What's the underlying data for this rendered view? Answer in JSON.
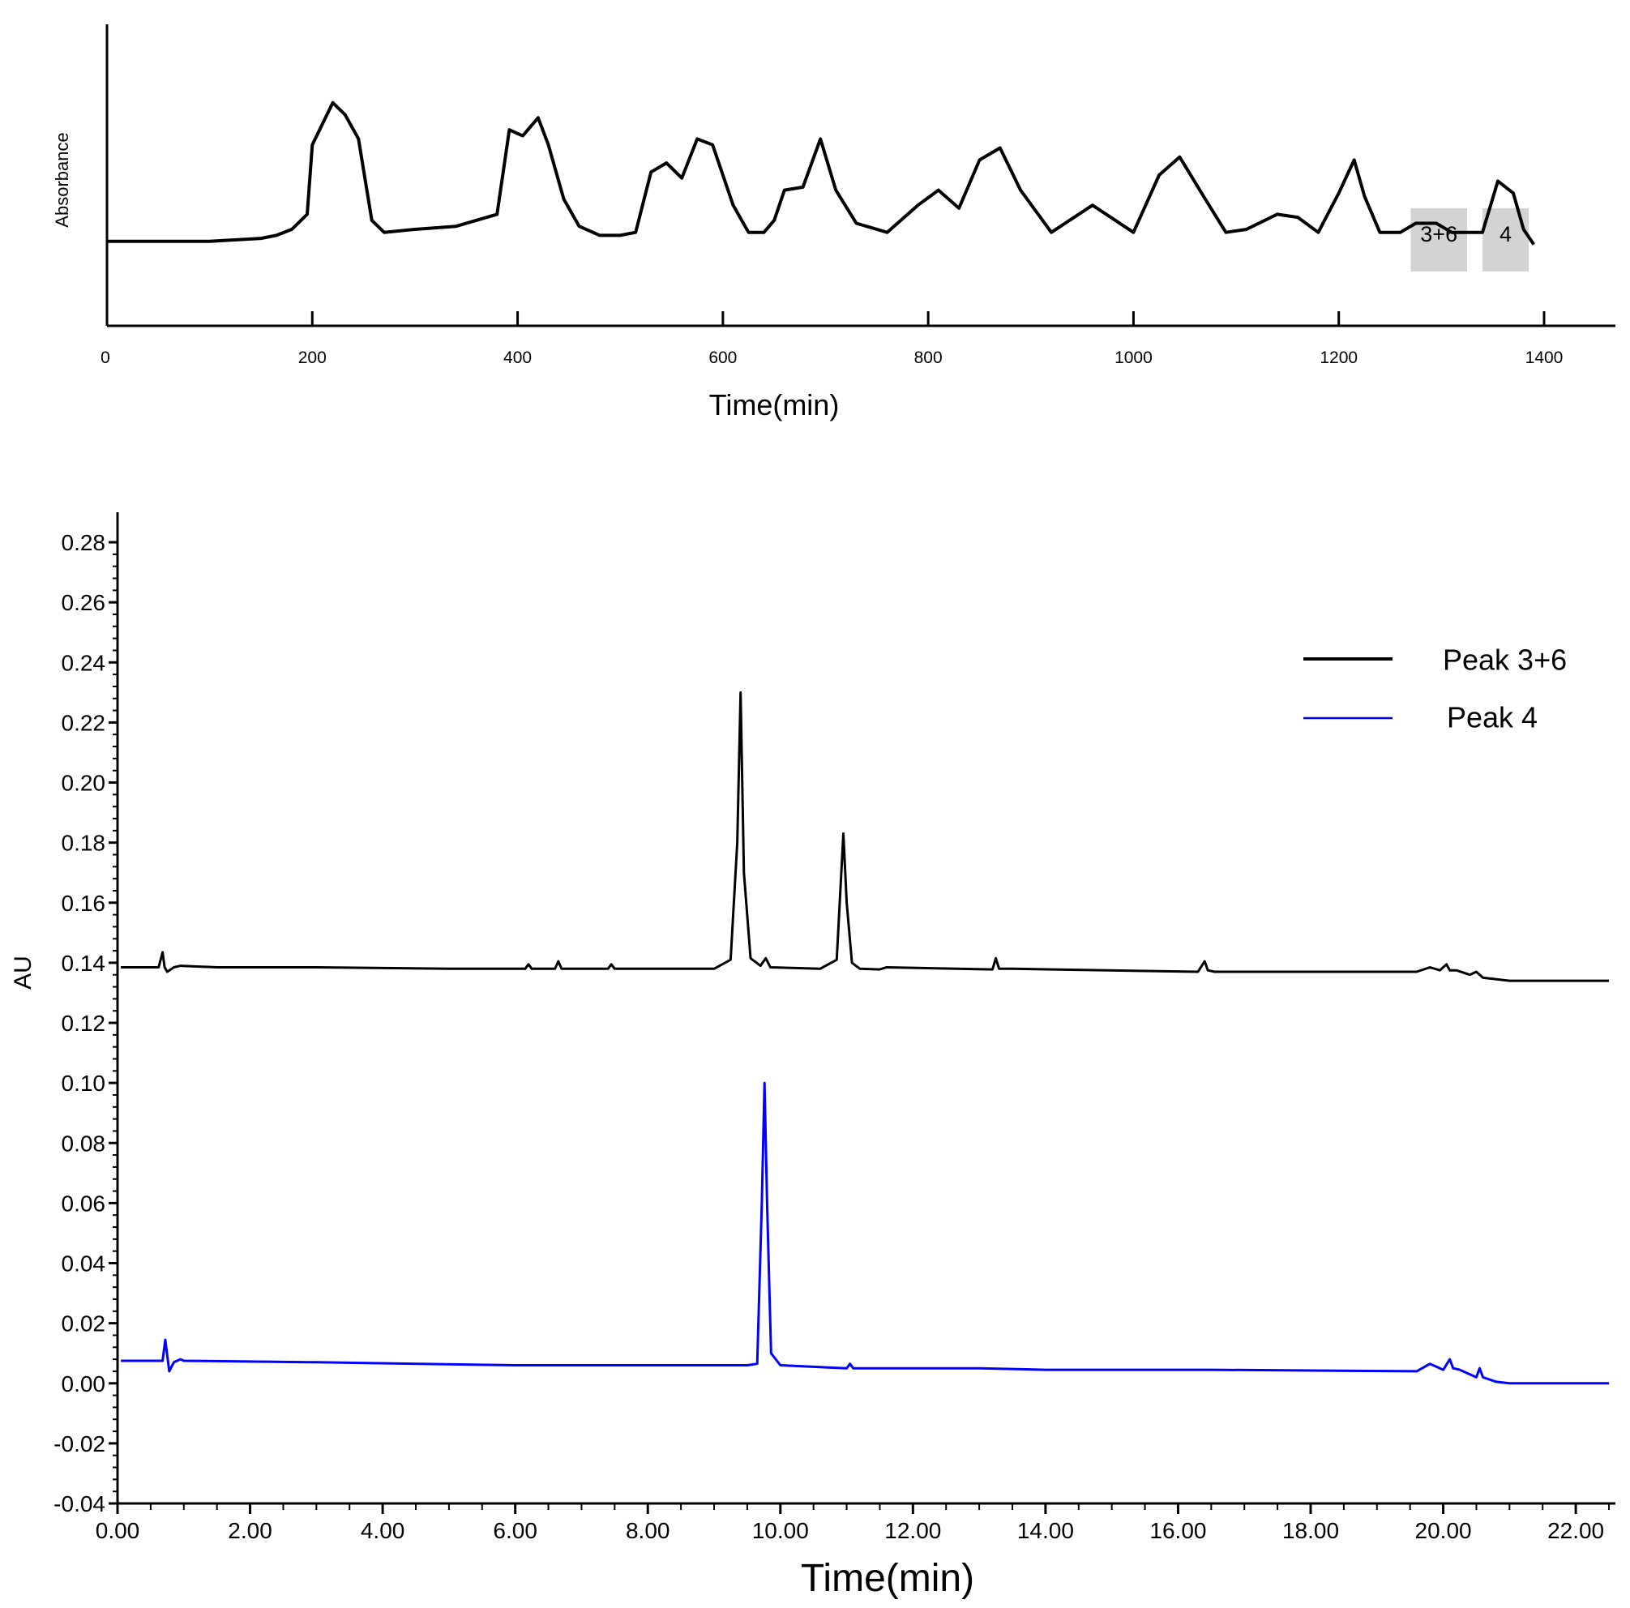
{
  "chart_data": [
    {
      "type": "line",
      "xlabel": "Time(min)",
      "ylabel": "Absorbance",
      "xlim": [
        0,
        1440
      ],
      "x_ticks": [
        0,
        200,
        400,
        600,
        800,
        1000,
        1200,
        1400
      ],
      "x_tick_labels": [
        "0",
        "200",
        "400",
        "600",
        "800",
        "1000",
        "1200",
        "1400"
      ],
      "y_ticks_shown": false,
      "ylim": [
        0,
        1
      ],
      "grid": false,
      "line_color": "#000000",
      "series": [
        {
          "x": [
            0,
            50,
            100,
            150,
            165,
            180,
            195,
            200,
            210,
            220,
            232,
            245,
            258,
            270,
            300,
            340,
            380,
            392,
            405,
            420,
            430,
            445,
            460,
            480,
            500,
            515,
            530,
            545,
            560,
            575,
            590,
            610,
            625,
            640,
            650,
            660,
            678,
            695,
            710,
            730,
            760,
            790,
            810,
            830,
            850,
            870,
            890,
            920,
            960,
            1000,
            1025,
            1045,
            1070,
            1090,
            1110,
            1140,
            1160,
            1180,
            1200,
            1215,
            1225,
            1240,
            1260,
            1275,
            1295,
            1310,
            1340,
            1355,
            1370,
            1380,
            1390
          ],
          "y": [
            0.28,
            0.28,
            0.28,
            0.29,
            0.3,
            0.32,
            0.37,
            0.6,
            0.67,
            0.74,
            0.7,
            0.62,
            0.35,
            0.31,
            0.32,
            0.33,
            0.37,
            0.65,
            0.63,
            0.69,
            0.6,
            0.42,
            0.33,
            0.3,
            0.3,
            0.31,
            0.51,
            0.54,
            0.49,
            0.62,
            0.6,
            0.4,
            0.31,
            0.31,
            0.35,
            0.45,
            0.46,
            0.62,
            0.45,
            0.34,
            0.31,
            0.4,
            0.45,
            0.39,
            0.55,
            0.59,
            0.45,
            0.31,
            0.4,
            0.31,
            0.5,
            0.56,
            0.42,
            0.31,
            0.32,
            0.37,
            0.36,
            0.31,
            0.44,
            0.55,
            0.43,
            0.31,
            0.31,
            0.34,
            0.34,
            0.31,
            0.31,
            0.48,
            0.44,
            0.32,
            0.27
          ]
        }
      ],
      "annotations": [
        {
          "label": "3+6",
          "x_start": 1270,
          "x_end": 1325,
          "fill": "#d3d3d3"
        },
        {
          "label": "4",
          "x_start": 1340,
          "x_end": 1385,
          "fill": "#d3d3d3"
        }
      ]
    },
    {
      "type": "line",
      "xlabel": "Time(min)",
      "ylabel": "AU",
      "xlim": [
        0,
        22.5
      ],
      "ylim": [
        -0.04,
        0.29
      ],
      "x_ticks": [
        0,
        2,
        4,
        6,
        8,
        10,
        12,
        14,
        16,
        18,
        20,
        22
      ],
      "x_tick_labels": [
        "0.00",
        "2.00",
        "4.00",
        "6.00",
        "8.00",
        "10.00",
        "12.00",
        "14.00",
        "16.00",
        "18.00",
        "20.00",
        "22.00"
      ],
      "y_ticks": [
        -0.04,
        -0.02,
        0.0,
        0.02,
        0.04,
        0.06,
        0.08,
        0.1,
        0.12,
        0.14,
        0.16,
        0.18,
        0.2,
        0.22,
        0.24,
        0.26,
        0.28
      ],
      "y_tick_labels": [
        "-0.04",
        "-0.02",
        "0.00",
        "0.02",
        "0.04",
        "0.06",
        "0.08",
        "0.10",
        "0.12",
        "0.14",
        "0.16",
        "0.18",
        "0.20",
        "0.22",
        "0.24",
        "0.26",
        "0.28"
      ],
      "grid": false,
      "legend_position": "top-right",
      "series": [
        {
          "name": "Peak 3+6",
          "color": "#000000",
          "x": [
            0.05,
            0.62,
            0.68,
            0.71,
            0.75,
            0.85,
            0.95,
            1.5,
            3.0,
            5.0,
            6.15,
            6.2,
            6.25,
            6.6,
            6.65,
            6.7,
            7.4,
            7.45,
            7.5,
            9.0,
            9.25,
            9.35,
            9.4,
            9.45,
            9.55,
            9.7,
            9.78,
            9.85,
            10.6,
            10.85,
            10.95,
            11.0,
            11.08,
            11.2,
            11.5,
            11.6,
            13.2,
            13.25,
            13.3,
            13.5,
            14.1,
            16.3,
            16.4,
            16.45,
            16.55,
            19.6,
            19.8,
            19.95,
            20.05,
            20.1,
            20.2,
            20.4,
            20.5,
            20.6,
            20.7,
            21.0,
            22.5
          ],
          "y": [
            0.1385,
            0.1385,
            0.1435,
            0.1385,
            0.137,
            0.1385,
            0.139,
            0.1385,
            0.1385,
            0.138,
            0.138,
            0.1395,
            0.138,
            0.138,
            0.1405,
            0.138,
            0.138,
            0.1395,
            0.138,
            0.138,
            0.141,
            0.18,
            0.23,
            0.17,
            0.1415,
            0.139,
            0.1415,
            0.1385,
            0.138,
            0.141,
            0.183,
            0.16,
            0.14,
            0.138,
            0.1378,
            0.1385,
            0.1378,
            0.1415,
            0.138,
            0.138,
            0.1378,
            0.137,
            0.1405,
            0.1375,
            0.137,
            0.137,
            0.1385,
            0.1375,
            0.1395,
            0.1375,
            0.1375,
            0.136,
            0.137,
            0.135,
            0.1348,
            0.134,
            0.134
          ]
        },
        {
          "name": "Peak 4",
          "color": "#0000ff",
          "x": [
            0.05,
            0.68,
            0.72,
            0.78,
            0.85,
            0.95,
            1.0,
            3.0,
            6.0,
            9.5,
            9.65,
            9.72,
            9.76,
            9.8,
            9.86,
            10.0,
            10.5,
            11.0,
            11.05,
            11.1,
            13.0,
            14.0,
            16.5,
            19.6,
            19.8,
            20.0,
            20.1,
            20.15,
            20.25,
            20.5,
            20.55,
            20.6,
            20.8,
            21.0,
            22.5
          ],
          "y": [
            0.0075,
            0.0075,
            0.0145,
            0.004,
            0.007,
            0.008,
            0.0075,
            0.007,
            0.006,
            0.006,
            0.0065,
            0.06,
            0.1,
            0.06,
            0.01,
            0.006,
            0.0055,
            0.005,
            0.0065,
            0.005,
            0.005,
            0.0045,
            0.0045,
            0.004,
            0.0065,
            0.0045,
            0.008,
            0.005,
            0.0045,
            0.002,
            0.005,
            0.002,
            0.0005,
            0.0,
            0.0
          ]
        }
      ]
    }
  ]
}
